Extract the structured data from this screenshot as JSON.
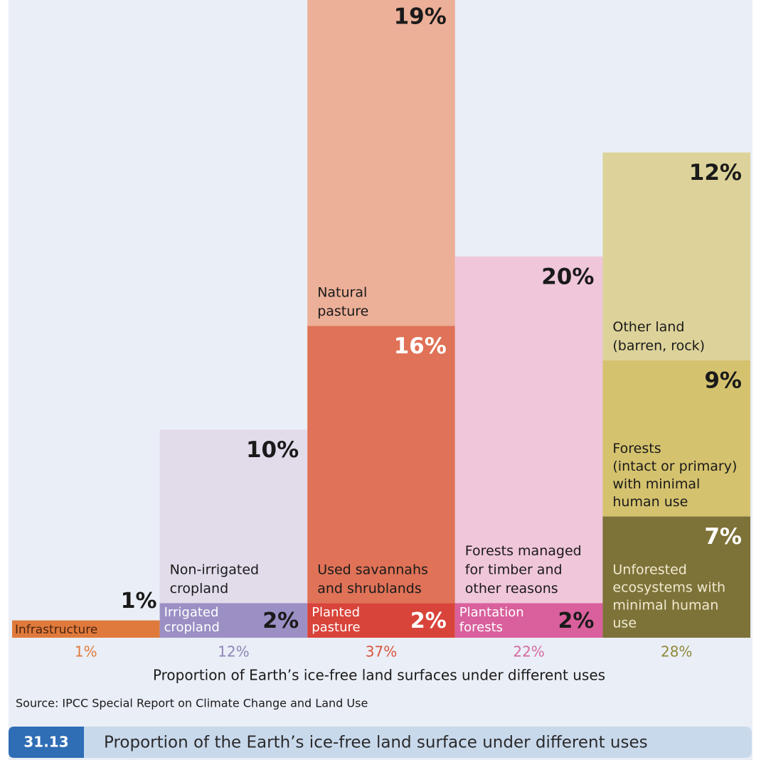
{
  "chart_data": {
    "type": "stacked_columns",
    "ylim": [
      0,
      36.8
    ],
    "xlabel": "Proportion of Earth’s ice-free land surfaces under different uses",
    "source": "Source: IPCC Special Report on Climate Change and Land Use",
    "figure_number": "31.13",
    "caption": "Proportion of the Earth’s ice-free land surface under different uses",
    "columns": [
      {
        "total": 1,
        "total_label": "1%",
        "total_color": "#e07a3c",
        "segments": [
          {
            "label": [
              "Infrastructure"
            ],
            "value": 1,
            "value_label": "1%",
            "color": "#e07a3c",
            "label_color": "#4a2410",
            "value_color": "#1a1a1a"
          }
        ]
      },
      {
        "total": 12,
        "total_label": "12%",
        "total_color": "#8e86b8",
        "segments": [
          {
            "label": [
              "Irrigated",
              "cropland"
            ],
            "value": 2,
            "value_label": "2%",
            "color": "#9b8fc4",
            "label_color": "#ffffff",
            "value_color": "#1a1a1a"
          },
          {
            "label": [
              "Non-irrigated",
              "cropland"
            ],
            "value": 10,
            "value_label": "10%",
            "color": "#e2dbea",
            "label_color": "#1a1a1a",
            "value_color": "#1a1a1a"
          }
        ]
      },
      {
        "total": 37,
        "total_label": "37%",
        "total_color": "#d9553e",
        "segments": [
          {
            "label": [
              "Planted",
              "pasture"
            ],
            "value": 2,
            "value_label": "2%",
            "color": "#d9443a",
            "label_color": "#ffffff",
            "value_color": "#ffffff"
          },
          {
            "label": [
              "Used savannahs",
              "and shrublands"
            ],
            "value": 16,
            "value_label": "16%",
            "color": "#df7257",
            "label_color": "#1a1a1a",
            "value_color": "#ffffff"
          },
          {
            "label": [
              "Natural",
              "pasture"
            ],
            "value": 19,
            "value_label": "19%",
            "color": "#ecaf98",
            "label_color": "#1a1a1a",
            "value_color": "#1a1a1a"
          }
        ]
      },
      {
        "total": 22,
        "total_label": "22%",
        "total_color": "#d46aa0",
        "segments": [
          {
            "label": [
              "Plantation",
              "forests"
            ],
            "value": 2,
            "value_label": "2%",
            "color": "#d9609c",
            "label_color": "#ffffff",
            "value_color": "#1a1a1a"
          },
          {
            "label": [
              "Forests managed",
              "for timber and",
              "other reasons"
            ],
            "value": 20,
            "value_label": "20%",
            "color": "#f0c6da",
            "label_color": "#1a1a1a",
            "value_color": "#1a1a1a"
          }
        ]
      },
      {
        "total": 28,
        "total_label": "28%",
        "total_color": "#8f8a3a",
        "segments": [
          {
            "label": [
              "Unforested",
              "ecosystems with",
              "minimal human",
              "use"
            ],
            "value": 7,
            "value_label": "7%",
            "color": "#7d7238",
            "label_color": "#f0ead0",
            "value_color": "#ffffff"
          },
          {
            "label": [
              "Forests",
              "(intact or primary)",
              "with minimal",
              "human use"
            ],
            "value": 9,
            "value_label": "9%",
            "color": "#d5c26e",
            "label_color": "#1a1a1a",
            "value_color": "#1a1a1a"
          },
          {
            "label": [
              "Other land",
              "(barren, rock)"
            ],
            "value": 12,
            "value_label": "12%",
            "color": "#ddd39a",
            "label_color": "#1a1a1a",
            "value_color": "#1a1a1a"
          }
        ]
      }
    ]
  }
}
